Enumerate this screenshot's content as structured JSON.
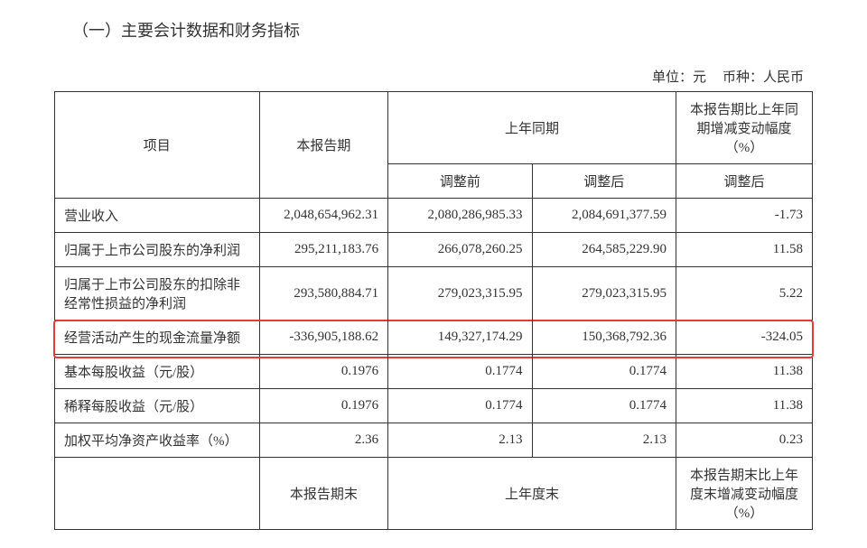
{
  "heading": "（一）主要会计数据和财务指标",
  "unit_prefix": "单位：",
  "unit_value": "元",
  "currency_prefix": "币种：",
  "currency_value": "人民币",
  "columns": {
    "item": "项目",
    "current": "本报告期",
    "prior_period": "上年同期",
    "prior_before": "调整前",
    "prior_after": "调整后",
    "change": "本报告期比上年同期增减变动幅度（%）",
    "change_sub": "调整后"
  },
  "rows": [
    {
      "label": "营业收入",
      "current": "2,048,654,962.31",
      "before": "2,080,286,985.33",
      "after": "2,084,691,377.59",
      "change": "-1.73",
      "highlight": false
    },
    {
      "label": "归属于上市公司股东的净利润",
      "current": "295,211,183.76",
      "before": "266,078,260.25",
      "after": "264,585,229.90",
      "change": "11.58",
      "highlight": false
    },
    {
      "label": "归属于上市公司股东的扣除非经常性损益的净利润",
      "current": "293,580,884.71",
      "before": "279,023,315.95",
      "after": "279,023,315.95",
      "change": "5.22",
      "highlight": false
    },
    {
      "label": "经营活动产生的现金流量净额",
      "current": "-336,905,188.62",
      "before": "149,327,174.29",
      "after": "150,368,792.36",
      "change": "-324.05",
      "highlight": true
    },
    {
      "label": "基本每股收益（元/股）",
      "current": "0.1976",
      "before": "0.1774",
      "after": "0.1774",
      "change": "11.38",
      "highlight": false
    },
    {
      "label": "稀释每股收益（元/股）",
      "current": "0.1976",
      "before": "0.1774",
      "after": "0.1774",
      "change": "11.38",
      "highlight": false
    },
    {
      "label": "加权平均净资产收益率（%）",
      "current": "2.36",
      "before": "2.13",
      "after": "2.13",
      "change": "0.23",
      "highlight": false
    }
  ],
  "footer": {
    "current_end": "本报告期末",
    "prior_end": "上年度末",
    "change_end": "本报告期末比上年度末增减变动幅度（%）"
  },
  "highlight_color": "#e43c32"
}
